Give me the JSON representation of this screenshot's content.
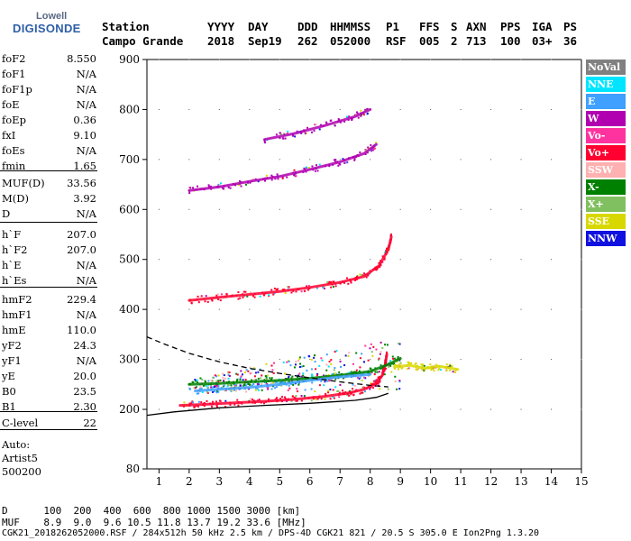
{
  "logo": {
    "top": "Lowell",
    "main": "DIGISONDE"
  },
  "header": {
    "labels": [
      "Station",
      "YYYY",
      "DAY",
      "DDD",
      "HHMMSS",
      "P1",
      "FFS",
      "S",
      "AXN",
      "PPS",
      "IGA",
      "PS"
    ],
    "values": [
      "Campo Grande",
      "2018",
      "Sep19",
      "262",
      "052000",
      "RSF",
      "005",
      "2",
      "713",
      "100",
      "03+",
      "36"
    ]
  },
  "params": [
    {
      "name": "foF2",
      "value": "8.550"
    },
    {
      "name": "foF1",
      "value": "N/A"
    },
    {
      "name": "foF1p",
      "value": "N/A"
    },
    {
      "name": "foE",
      "value": "N/A"
    },
    {
      "name": "foEp",
      "value": "0.36"
    },
    {
      "name": "fxI",
      "value": "9.10"
    },
    {
      "name": "foEs",
      "value": "N/A"
    },
    {
      "name": "fmin",
      "value": "1.65"
    },
    {
      "name": "MUF(D)",
      "value": "33.56"
    },
    {
      "name": "M(D)",
      "value": "3.92"
    },
    {
      "name": "D",
      "value": "N/A"
    },
    {
      "name": "h`F",
      "value": "207.0"
    },
    {
      "name": "h`F2",
      "value": "207.0"
    },
    {
      "name": "h`E",
      "value": "N/A"
    },
    {
      "name": "h`Es",
      "value": "N/A"
    },
    {
      "name": "hmF2",
      "value": "229.4"
    },
    {
      "name": "hmF1",
      "value": "N/A"
    },
    {
      "name": "hmE",
      "value": "110.0"
    },
    {
      "name": "yF2",
      "value": "24.3"
    },
    {
      "name": "yF1",
      "value": "N/A"
    },
    {
      "name": "yE",
      "value": "20.0"
    },
    {
      "name": "B0",
      "value": "23.5"
    },
    {
      "name": "B1",
      "value": "2.30"
    },
    {
      "name": "C-level",
      "value": "22"
    }
  ],
  "auto": {
    "line1": "Auto:",
    "line2": "Artist5",
    "line3": "500200"
  },
  "legend": [
    {
      "label": "NoVal",
      "bg": "#808080",
      "fg": "#ffffff"
    },
    {
      "label": "NNE",
      "bg": "#00e5ff",
      "fg": "#ffffff"
    },
    {
      "label": "E",
      "bg": "#3fa0ff",
      "fg": "#ffffff"
    },
    {
      "label": "W",
      "bg": "#b000b0",
      "fg": "#ffffff"
    },
    {
      "label": "Vo-",
      "bg": "#ff33a0",
      "fg": "#ffffff"
    },
    {
      "label": "Vo+",
      "bg": "#ff0030",
      "fg": "#ffffff"
    },
    {
      "label": "SSW",
      "bg": "#ffb0b0",
      "fg": "#ffffff"
    },
    {
      "label": "X-",
      "bg": "#008000",
      "fg": "#ffffff"
    },
    {
      "label": "X+",
      "bg": "#80c060",
      "fg": "#ffffff"
    },
    {
      "label": "SSE",
      "bg": "#d8d800",
      "fg": "#ffffff"
    },
    {
      "label": "NNW",
      "bg": "#1010e0",
      "fg": "#ffffff"
    }
  ],
  "footer": {
    "line1": "D      100  200  400  600  800 1000 1500 3000 [km]",
    "line2": "MUF    8.9  9.0  9.6 10.5 11.8 13.7 19.2 33.6 [MHz]",
    "line3": "CGK21_2018262052000.RSF / 284x512h 50 kHz 2.5 km / DPS-4D CGK21 821 / 20.5 S 305.0 E Ion2Png 1.3.20"
  },
  "chart_data": {
    "type": "scatter",
    "title": "",
    "xlabel": "",
    "ylabel": "",
    "xlim": [
      0.6,
      15
    ],
    "ylim": [
      80,
      900
    ],
    "xticks": [
      "1",
      "2",
      "3",
      "4",
      "5",
      "6",
      "7",
      "8",
      "9",
      "10",
      "11",
      "12",
      "13",
      "14",
      "15"
    ],
    "yticks": [
      "80",
      "200",
      "300",
      "400",
      "500",
      "600",
      "700",
      "800",
      "900"
    ],
    "traces": [
      {
        "name": "O-trace 1st hop",
        "color": "#ff0030",
        "points": [
          [
            1.7,
            208
          ],
          [
            2.5,
            210
          ],
          [
            3.5,
            213
          ],
          [
            4.5,
            216
          ],
          [
            5.5,
            220
          ],
          [
            6.5,
            226
          ],
          [
            7.2,
            232
          ],
          [
            7.8,
            240
          ],
          [
            8.2,
            252
          ],
          [
            8.4,
            268
          ],
          [
            8.5,
            290
          ],
          [
            8.55,
            310
          ]
        ]
      },
      {
        "name": "X-trace 1st hop",
        "color": "#008000",
        "points": [
          [
            2.0,
            250
          ],
          [
            3.0,
            252
          ],
          [
            4.0,
            255
          ],
          [
            5.0,
            258
          ],
          [
            6.0,
            262
          ],
          [
            7.0,
            268
          ],
          [
            8.0,
            276
          ],
          [
            8.6,
            290
          ],
          [
            9.0,
            302
          ]
        ]
      },
      {
        "name": "2nd hop",
        "color": "#ff0030",
        "points": [
          [
            2.0,
            418
          ],
          [
            3.0,
            424
          ],
          [
            4.0,
            430
          ],
          [
            5.0,
            436
          ],
          [
            6.0,
            444
          ],
          [
            7.0,
            454
          ],
          [
            7.8,
            466
          ],
          [
            8.3,
            488
          ],
          [
            8.6,
            520
          ],
          [
            8.7,
            545
          ]
        ]
      },
      {
        "name": "3rd hop",
        "color": "#b000b0",
        "points": [
          [
            2.0,
            638
          ],
          [
            3.0,
            645
          ],
          [
            4.0,
            656
          ],
          [
            5.0,
            666
          ],
          [
            6.0,
            680
          ],
          [
            7.0,
            695
          ],
          [
            7.8,
            712
          ],
          [
            8.2,
            730
          ]
        ]
      },
      {
        "name": "4th hop",
        "color": "#b000b0",
        "points": [
          [
            4.5,
            740
          ],
          [
            5.5,
            752
          ],
          [
            6.5,
            768
          ],
          [
            7.5,
            786
          ],
          [
            8.0,
            800
          ]
        ]
      },
      {
        "name": "Es cluster",
        "color": "#3fa0ff",
        "points": [
          [
            2.2,
            237
          ],
          [
            3.0,
            240
          ],
          [
            4.0,
            244
          ],
          [
            5.0,
            250
          ],
          [
            6.0,
            258
          ],
          [
            7.0,
            265
          ],
          [
            8.0,
            270
          ]
        ]
      },
      {
        "name": "SSE spread",
        "color": "#d8d800",
        "points": [
          [
            8.8,
            285
          ],
          [
            9.3,
            288
          ],
          [
            9.8,
            282
          ],
          [
            10.3,
            286
          ],
          [
            10.9,
            280
          ]
        ]
      }
    ],
    "profile_solid": [
      [
        0.6,
        188
      ],
      [
        1.5,
        195
      ],
      [
        3.0,
        203
      ],
      [
        4.5,
        208
      ],
      [
        6.0,
        212
      ],
      [
        7.5,
        218
      ],
      [
        8.2,
        224
      ],
      [
        8.6,
        232
      ]
    ],
    "profile_dashed": [
      [
        0.6,
        345
      ],
      [
        1.2,
        330
      ],
      [
        2.0,
        312
      ],
      [
        3.0,
        295
      ],
      [
        4.0,
        282
      ],
      [
        5.0,
        272
      ],
      [
        6.0,
        263
      ],
      [
        7.0,
        255
      ],
      [
        8.0,
        248
      ],
      [
        8.6,
        245
      ]
    ]
  }
}
